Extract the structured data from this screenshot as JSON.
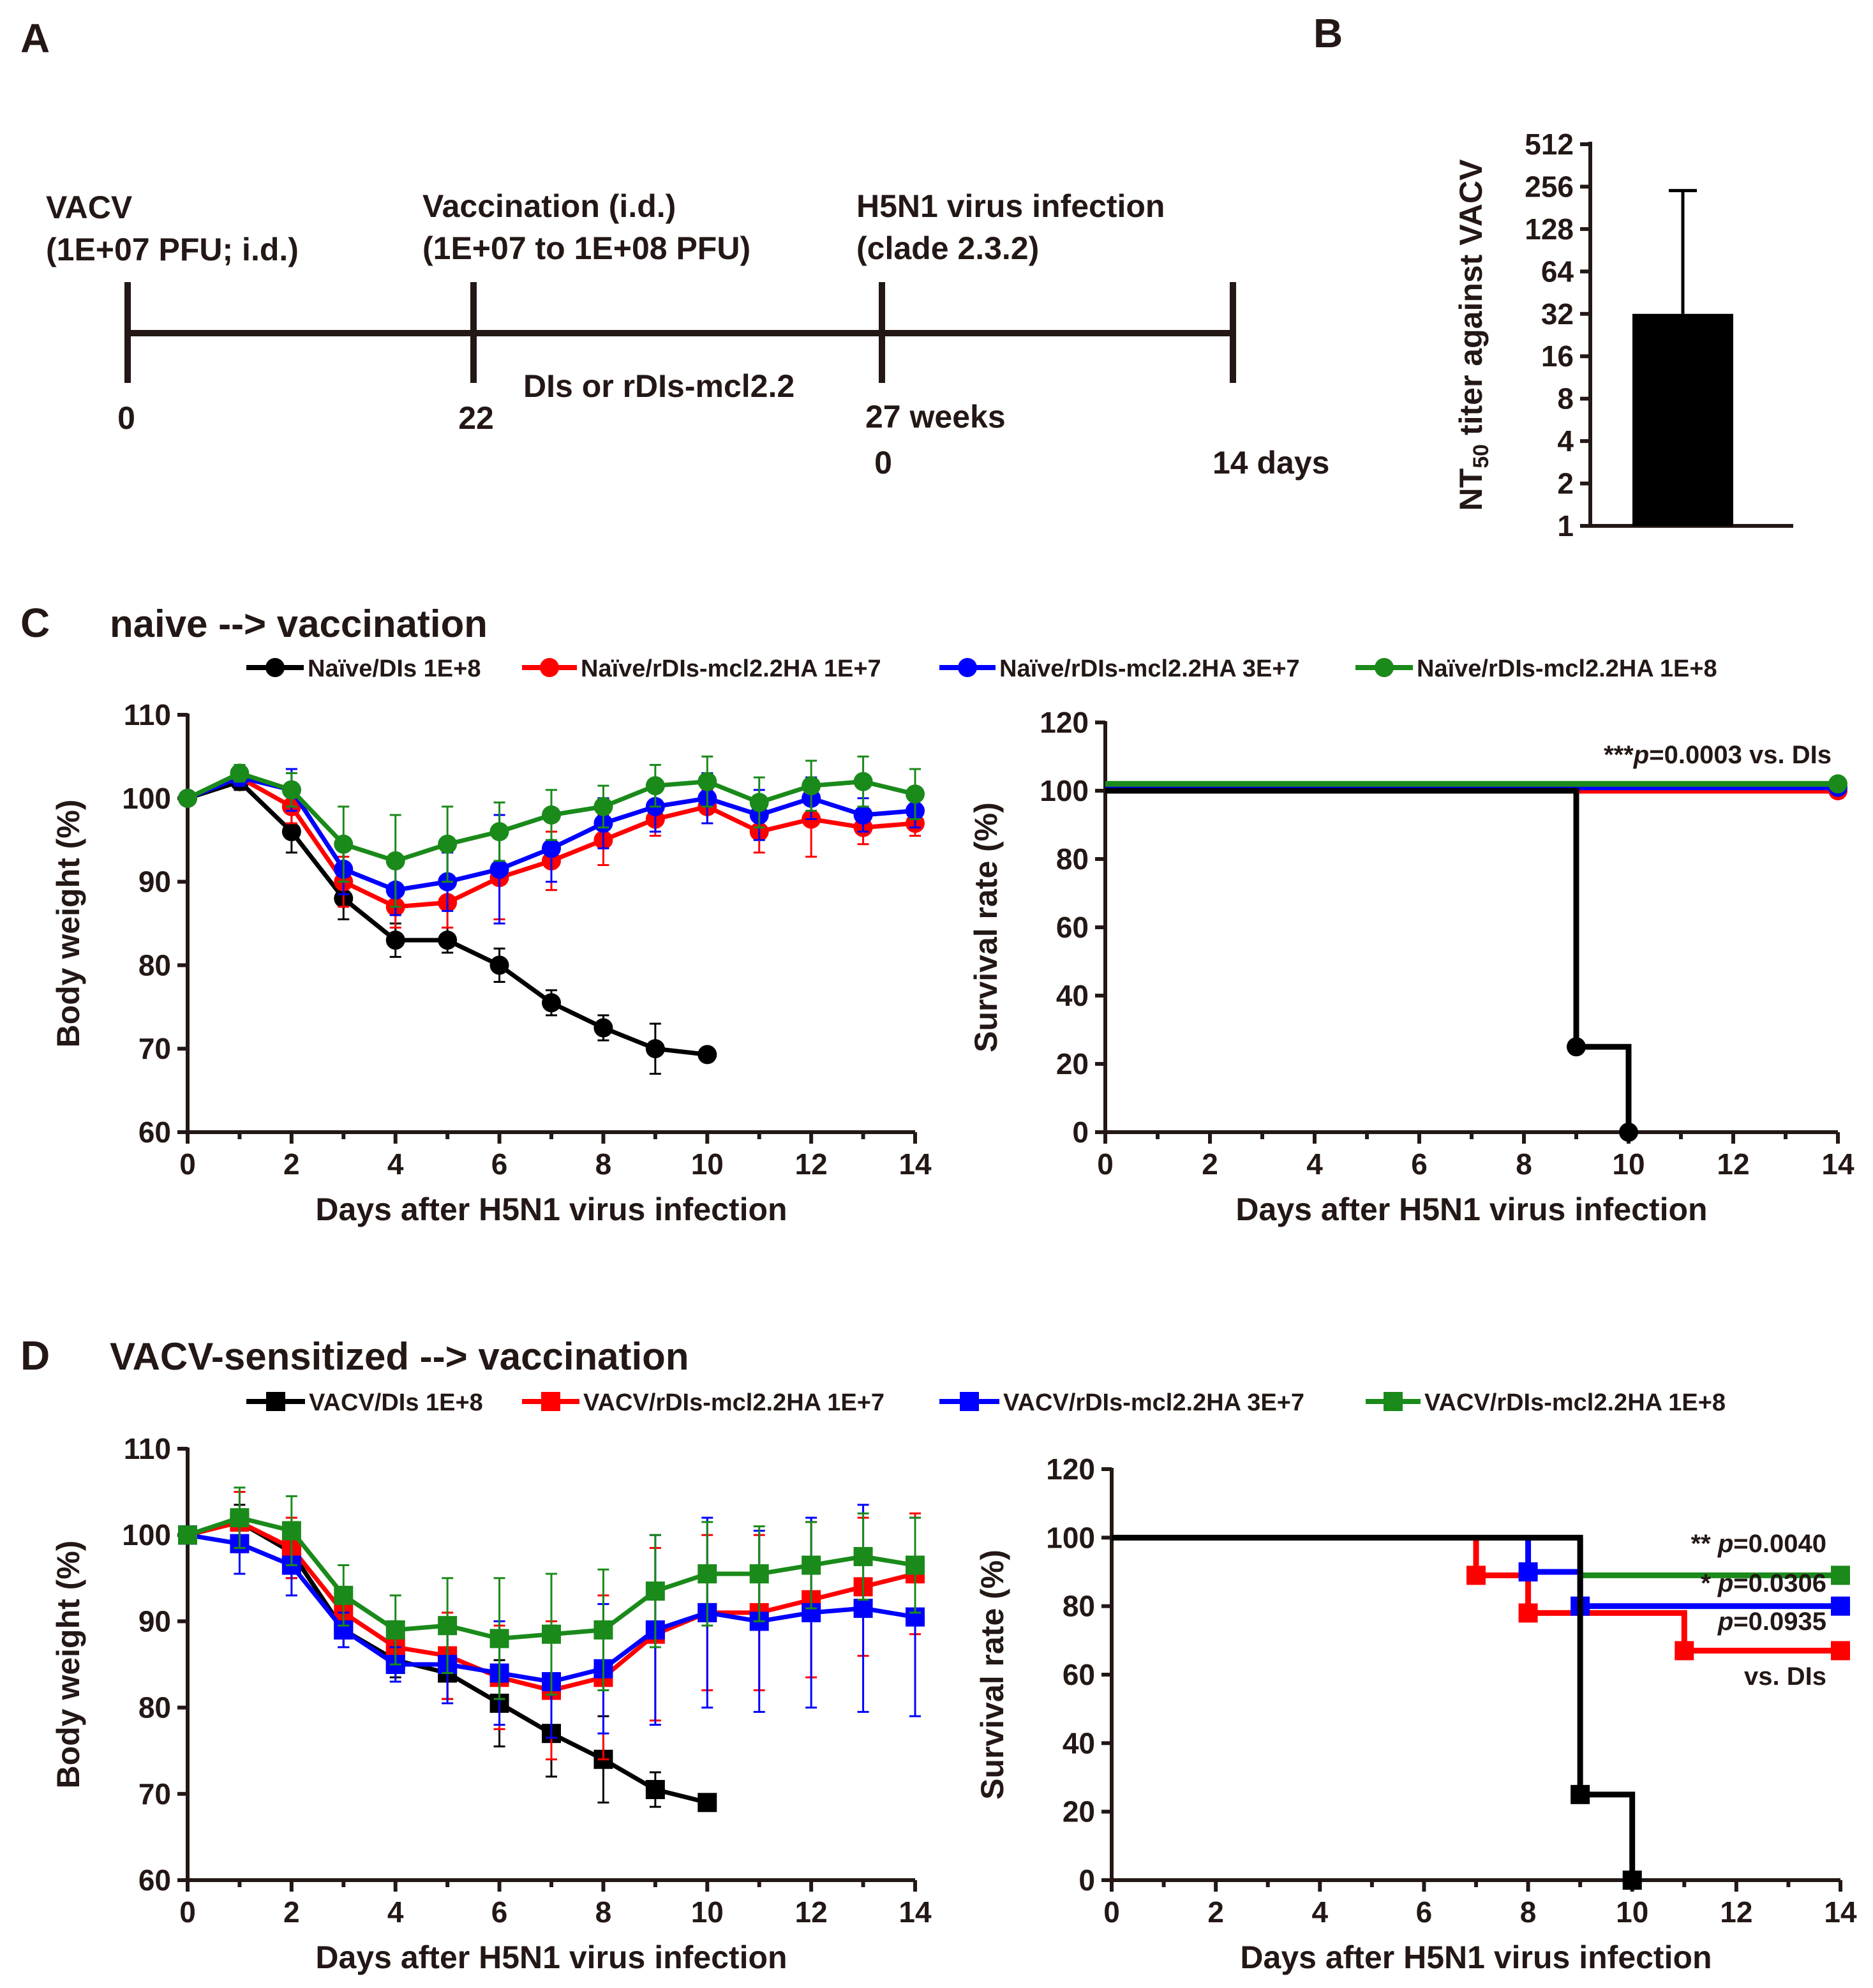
{
  "panel_labels": {
    "a": "A",
    "b": "B",
    "c": "C",
    "d": "D"
  },
  "timeline": {
    "events": [
      {
        "line1": "VACV",
        "line2": "(1E+07 PFU; i.d.)"
      },
      {
        "line1": "Vaccination (i.d.)",
        "line2": "(1E+07 to 1E+08 PFU)"
      },
      {
        "line1": "H5N1 virus infection",
        "line2": "(clade 2.3.2)"
      }
    ],
    "middle_label": "DIs or rDIs-mcl2.2",
    "tick_labels": [
      "0",
      "22",
      "27 weeks",
      "0",
      "14 days"
    ]
  },
  "colors": {
    "black": "#000000",
    "red": "#ff0000",
    "blue": "#0000ff",
    "green": "#1a8a1a",
    "axis": "#231815"
  },
  "panel_c": {
    "title": "naive --> vaccination",
    "legend": [
      "Naïve/DIs 1E+8",
      "Naïve/rDIs-mcl2.2HA 1E+7",
      "Naïve/rDIs-mcl2.2HA 3E+7",
      "Naïve/rDIs-mcl2.2HA 1E+8"
    ],
    "survival_annotation": {
      "stars": "***",
      "p_italic": "p",
      "rest": "=0.0003 vs. DIs"
    }
  },
  "panel_d": {
    "title": "VACV-sensitized --> vaccination",
    "legend": [
      "VACV/DIs 1E+8",
      "VACV/rDIs-mcl2.2HA 1E+7",
      "VACV/rDIs-mcl2.2HA 3E+7",
      "VACV/rDIs-mcl2.2HA 1E+8"
    ],
    "survival_annotations": [
      {
        "stars": "** ",
        "p_italic": "p",
        "rest": "=0.0040"
      },
      {
        "stars": "* ",
        "p_italic": "p",
        "rest": "=0.0306"
      },
      {
        "stars": "",
        "p_italic": "p",
        "rest": "=0.0935"
      },
      {
        "stars": "",
        "p_italic": "",
        "rest": "vs. DIs"
      }
    ]
  },
  "chart_data": [
    {
      "id": "B",
      "type": "bar",
      "title": "",
      "ylabel_main": "NT",
      "ylabel_sub": "50",
      "ylabel_rest": " titer against VACV",
      "yscale": "log2",
      "yticks": [
        1,
        2,
        4,
        8,
        16,
        32,
        64,
        128,
        256,
        512
      ],
      "ylim": [
        1,
        512
      ],
      "categories": [
        ""
      ],
      "values": [
        32
      ],
      "error_upper": [
        240
      ]
    },
    {
      "id": "C-weight",
      "type": "line",
      "xlabel": "Days after H5N1 virus infection",
      "ylabel": "Body weight (%)",
      "xlim": [
        0,
        14
      ],
      "ylim": [
        60,
        110
      ],
      "xticks": [
        0,
        2,
        4,
        6,
        8,
        10,
        12,
        14
      ],
      "yticks": [
        60,
        70,
        80,
        90,
        100,
        110
      ],
      "marker": "circle",
      "series": [
        {
          "name": "Naïve/DIs 1E+8",
          "color": "#000000",
          "x": [
            0,
            1,
            2,
            3,
            4,
            5,
            6,
            7,
            8,
            9,
            10
          ],
          "values": [
            100,
            102,
            96,
            88,
            83,
            83,
            80,
            75.5,
            72.5,
            70,
            69.3
          ],
          "err": [
            0,
            1,
            2.5,
            2.5,
            2,
            1.5,
            2,
            1.5,
            1.5,
            3,
            0
          ]
        },
        {
          "name": "Naïve/rDIs-mcl2.2HA 1E+7",
          "color": "#ff0000",
          "x": [
            0,
            1,
            2,
            3,
            4,
            5,
            6,
            7,
            8,
            9,
            10,
            11,
            12,
            13,
            14
          ],
          "values": [
            100,
            102.5,
            99,
            90,
            87,
            87.5,
            90.5,
            92.5,
            95,
            97.5,
            99,
            96,
            97.5,
            96.5,
            97
          ],
          "err": [
            0,
            1,
            2,
            3,
            2.5,
            3,
            5,
            3.5,
            3,
            2,
            2,
            2.5,
            4.5,
            2,
            1.5
          ]
        },
        {
          "name": "Naïve/rDIs-mcl2.2HA 3E+7",
          "color": "#0000ff",
          "x": [
            0,
            1,
            2,
            3,
            4,
            5,
            6,
            7,
            8,
            9,
            10,
            11,
            12,
            13,
            14
          ],
          "values": [
            100,
            102.5,
            101,
            91.5,
            89,
            90,
            91.5,
            94,
            97,
            99,
            100,
            98,
            100,
            98,
            98.5
          ],
          "err": [
            0,
            1,
            2.5,
            3,
            3,
            3.5,
            6.5,
            4,
            3,
            3,
            3,
            3,
            2.5,
            2,
            2
          ]
        },
        {
          "name": "Naïve/rDIs-mcl2.2HA 1E+8",
          "color": "#1a8a1a",
          "x": [
            0,
            1,
            2,
            3,
            4,
            5,
            6,
            7,
            8,
            9,
            10,
            11,
            12,
            13,
            14
          ],
          "values": [
            100,
            103,
            101,
            94.5,
            92.5,
            94.5,
            96,
            98,
            99,
            101.5,
            102,
            99.5,
            101.5,
            102,
            100.5
          ],
          "err": [
            0,
            1,
            2,
            4.5,
            5.5,
            4.5,
            3.5,
            3,
            2.5,
            2.5,
            3,
            3,
            3,
            3,
            3
          ]
        }
      ]
    },
    {
      "id": "C-survival",
      "type": "line",
      "step": true,
      "xlabel": "Days after H5N1 virus infection",
      "ylabel": "Survival rate (%)",
      "xlim": [
        0,
        14
      ],
      "ylim": [
        0,
        120
      ],
      "xticks": [
        0,
        2,
        4,
        6,
        8,
        10,
        12,
        14
      ],
      "yticks": [
        0,
        20,
        40,
        60,
        80,
        100,
        120
      ],
      "marker": "circle",
      "series": [
        {
          "name": "Naïve/rDIs-mcl2.2HA 1E+7",
          "color": "#ff0000",
          "steps": [
            [
              0,
              100
            ],
            [
              14,
              100
            ]
          ],
          "markers": [
            [
              14,
              100
            ]
          ]
        },
        {
          "name": "Naïve/rDIs-mcl2.2HA 3E+7",
          "color": "#0000ff",
          "steps": [
            [
              0,
              101
            ],
            [
              14,
              101
            ]
          ],
          "markers": [
            [
              14,
              101
            ]
          ]
        },
        {
          "name": "Naïve/DIs 1E+8",
          "color": "#000000",
          "steps": [
            [
              0,
              100
            ],
            [
              9,
              100
            ],
            [
              9,
              25
            ],
            [
              10,
              25
            ],
            [
              10,
              0
            ]
          ],
          "markers": [
            [
              9,
              25
            ],
            [
              10,
              0
            ]
          ]
        },
        {
          "name": "Naïve/rDIs-mcl2.2HA 1E+8",
          "color": "#1a8a1a",
          "steps": [
            [
              0,
              102
            ],
            [
              14,
              102
            ]
          ],
          "markers": [
            [
              14,
              102
            ]
          ]
        }
      ]
    },
    {
      "id": "D-weight",
      "type": "line",
      "xlabel": "Days after H5N1 virus infection",
      "ylabel": "Body weight (%)",
      "xlim": [
        0,
        14
      ],
      "ylim": [
        60,
        110
      ],
      "xticks": [
        0,
        2,
        4,
        6,
        8,
        10,
        12,
        14
      ],
      "yticks": [
        60,
        70,
        80,
        90,
        100,
        110
      ],
      "marker": "square",
      "series": [
        {
          "name": "VACV/DIs 1E+8",
          "color": "#000000",
          "x": [
            0,
            1,
            2,
            3,
            4,
            5,
            6,
            7,
            8,
            9,
            10
          ],
          "values": [
            100,
            101.5,
            98,
            89,
            85.5,
            84,
            80.5,
            77,
            74,
            70.5,
            69
          ],
          "err": [
            0,
            2,
            3,
            2,
            2,
            3,
            5,
            5,
            5,
            2,
            0
          ]
        },
        {
          "name": "VACV/rDIs-mcl2.2HA 1E+7",
          "color": "#ff0000",
          "x": [
            0,
            1,
            2,
            3,
            4,
            5,
            6,
            7,
            8,
            9,
            10,
            11,
            12,
            13,
            14
          ],
          "values": [
            100,
            101.5,
            98.5,
            91,
            87,
            86,
            83.5,
            82,
            83.5,
            88.5,
            91,
            91,
            92.5,
            94,
            95.5
          ],
          "err": [
            0,
            3.5,
            3.5,
            3,
            3,
            5,
            6,
            8,
            9.5,
            10,
            9,
            9,
            9,
            8,
            7
          ]
        },
        {
          "name": "VACV/rDIs-mcl2.2HA 3E+7",
          "color": "#0000ff",
          "x": [
            0,
            1,
            2,
            3,
            4,
            5,
            6,
            7,
            8,
            9,
            10,
            11,
            12,
            13,
            14
          ],
          "values": [
            100,
            99,
            96.5,
            89,
            85,
            85,
            84,
            83,
            84.5,
            89,
            91,
            90,
            91,
            91.5,
            90.5
          ],
          "err": [
            0,
            3.5,
            3.5,
            2,
            2,
            4.5,
            6,
            6.5,
            7.5,
            11,
            11,
            10.5,
            11,
            12,
            11.5
          ]
        },
        {
          "name": "VACV/rDIs-mcl2.2HA 1E+8",
          "color": "#1a8a1a",
          "x": [
            0,
            1,
            2,
            3,
            4,
            5,
            6,
            7,
            8,
            9,
            10,
            11,
            12,
            13,
            14
          ],
          "values": [
            100,
            102,
            100.5,
            93,
            89,
            89.5,
            88,
            88.5,
            89,
            93.5,
            95.5,
            95.5,
            96.5,
            97.5,
            96.5
          ],
          "err": [
            0,
            3.5,
            4,
            3.5,
            4,
            5.5,
            7,
            7,
            7,
            6.5,
            6,
            5.5,
            5,
            5,
            5.5
          ]
        }
      ]
    },
    {
      "id": "D-survival",
      "type": "line",
      "step": true,
      "xlabel": "Days after H5N1 virus infection",
      "ylabel": "Survival rate (%)",
      "xlim": [
        0,
        14
      ],
      "ylim": [
        0,
        120
      ],
      "xticks": [
        0,
        2,
        4,
        6,
        8,
        10,
        12,
        14
      ],
      "yticks": [
        0,
        20,
        40,
        60,
        80,
        100,
        120
      ],
      "marker": "square",
      "series": [
        {
          "name": "VACV/rDIs-mcl2.2HA 1E+7",
          "color": "#ff0000",
          "steps": [
            [
              7,
              100
            ],
            [
              7,
              89
            ],
            [
              8,
              89
            ],
            [
              8,
              78
            ],
            [
              11,
              78
            ],
            [
              11,
              67
            ],
            [
              14,
              67
            ]
          ],
          "markers": [
            [
              7,
              89
            ],
            [
              8,
              78
            ],
            [
              11,
              67
            ],
            [
              14,
              67
            ]
          ]
        },
        {
          "name": "VACV/rDIs-mcl2.2HA 3E+7",
          "color": "#0000ff",
          "steps": [
            [
              8,
              100
            ],
            [
              8,
              90
            ],
            [
              9,
              90
            ],
            [
              9,
              80
            ],
            [
              14,
              80
            ]
          ],
          "markers": [
            [
              8,
              90
            ],
            [
              9,
              80
            ],
            [
              14,
              80
            ]
          ]
        },
        {
          "name": "VACV/rDIs-mcl2.2HA 1E+8",
          "color": "#1a8a1a",
          "steps": [
            [
              9,
              100
            ],
            [
              9,
              89
            ],
            [
              14,
              89
            ]
          ],
          "markers": [
            [
              14,
              89
            ]
          ]
        },
        {
          "name": "VACV/DIs 1E+8",
          "color": "#000000",
          "steps": [
            [
              0,
              100
            ],
            [
              9,
              100
            ],
            [
              9,
              25
            ],
            [
              10,
              25
            ],
            [
              10,
              0
            ]
          ],
          "markers": [
            [
              9,
              25
            ],
            [
              10,
              0
            ]
          ]
        }
      ]
    }
  ]
}
